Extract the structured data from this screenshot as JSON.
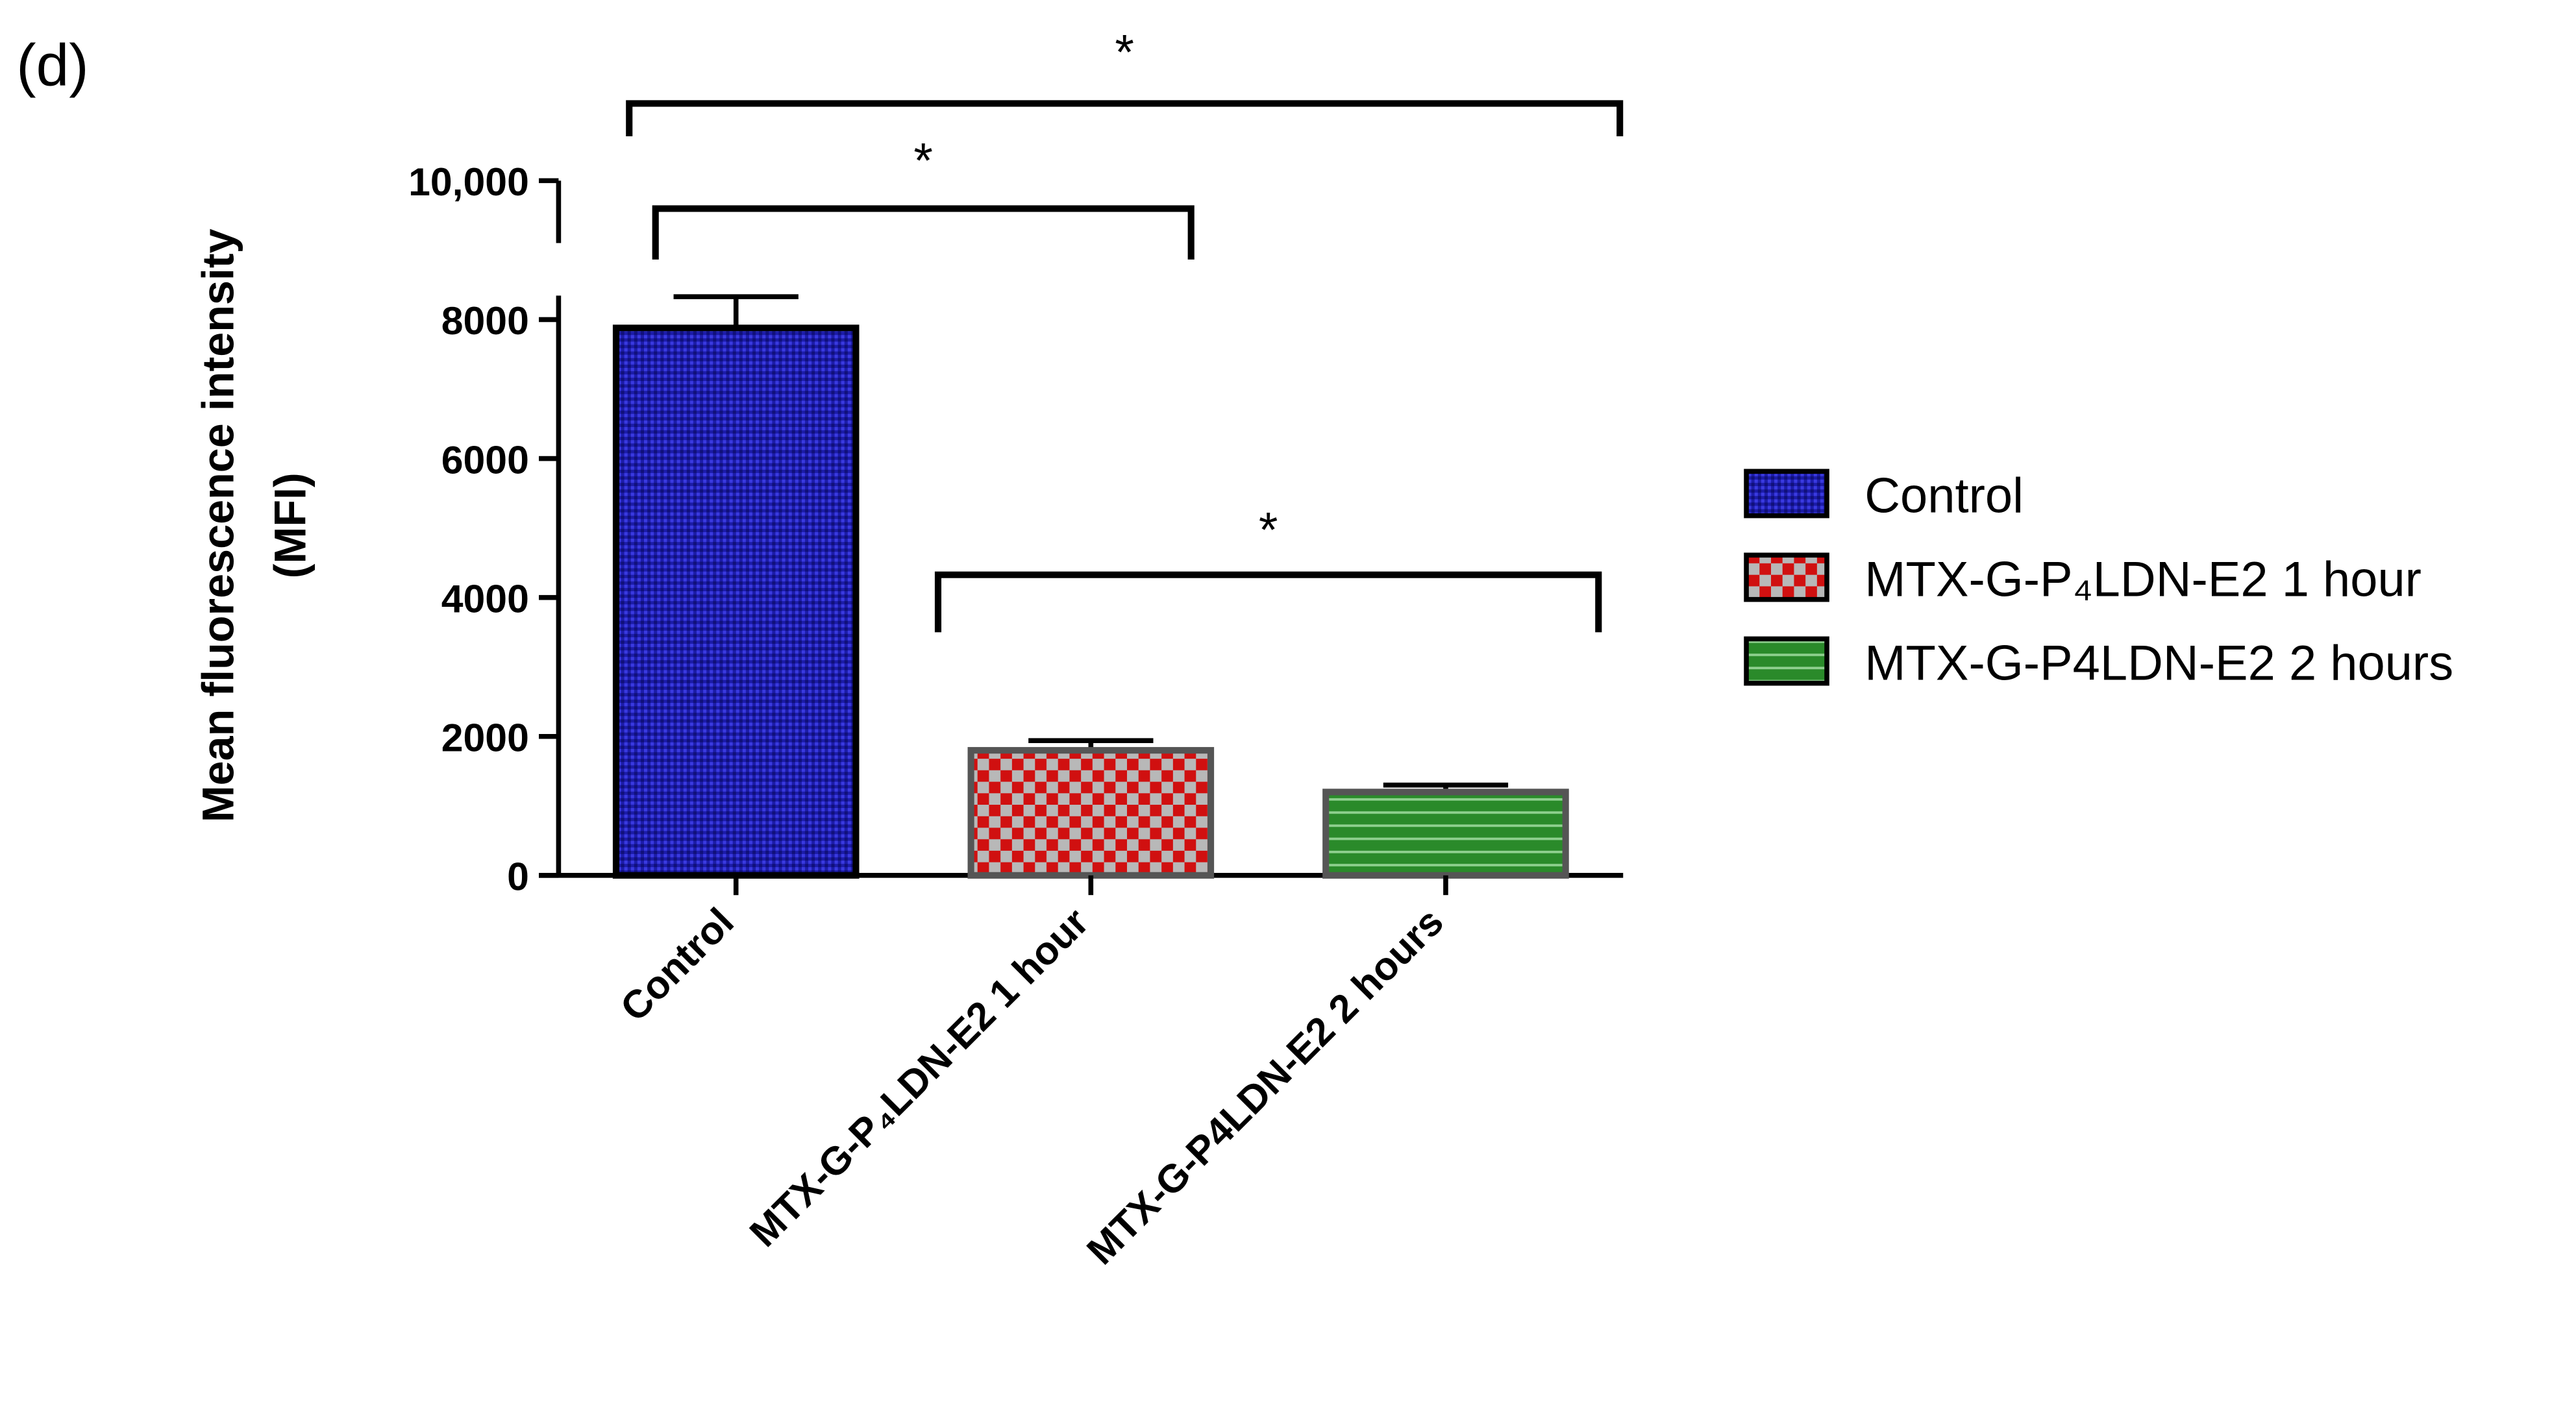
{
  "panel_label": "(d)",
  "chart_data": {
    "type": "bar",
    "y_label": [
      "Mean fluorescence intensity",
      "(MFI)"
    ],
    "categories": [
      "Control",
      "MTX-G-P₄LDN-E2 1 hour",
      "MTX-G-P4LDN-E2 2 hours"
    ],
    "values": [
      7880,
      1800,
      1200
    ],
    "errors": [
      450,
      140,
      100
    ],
    "colors": [
      "#1c1ca8",
      "#d01010",
      "#2a8a2a"
    ],
    "patterns": [
      "crosshatch",
      "checker",
      "hstripe"
    ],
    "ylim": [
      0,
      10000
    ],
    "yticks": [
      0,
      2000,
      4000,
      6000,
      8000,
      {
        "value": 10000,
        "label": "10,000"
      }
    ],
    "legend": "right",
    "annotations": [
      {
        "text": "*",
        "from": 0,
        "to": 2
      },
      {
        "text": "*",
        "from": 0,
        "to": 1
      },
      {
        "text": "*",
        "from": 1,
        "to": 2
      }
    ]
  }
}
